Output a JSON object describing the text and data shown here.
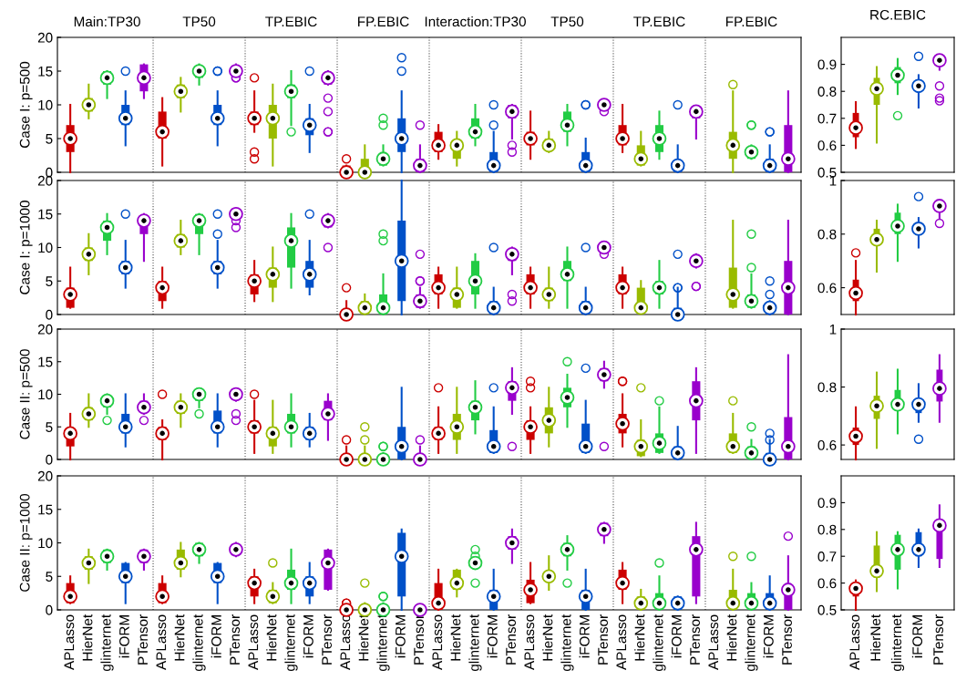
{
  "chart_data": [
    {
      "type": "box",
      "ylabel": "Case I: p=500",
      "tick_labels": "y",
      "annotations": [
        "Main:TP30",
        "TP50",
        "TP.EBIC",
        "FP.EBIC",
        "Interaction:TP30",
        "TP50",
        "TP.EBIC",
        "FP.EBIC"
      ],
      "categories": [
        "APLasso",
        "HierNet",
        "glinternet",
        "iFORM",
        "PTensor",
        "APLasso",
        "HierNet",
        "glinternet",
        "iFORM",
        "PTensor",
        "APLasso",
        "HierNet",
        "glinternet",
        "iFORM",
        "PTensor",
        "APLasso",
        "HierNet",
        "glinternet",
        "iFORM",
        "PTensor",
        "APLasso",
        "HierNet",
        "glinternet",
        "iFORM",
        "PTensor",
        "APLasso",
        "HierNet",
        "glinternet",
        "iFORM",
        "PTensor",
        "APLasso",
        "HierNet",
        "glinternet",
        "iFORM",
        "PTensor",
        "APLasso",
        "HierNet",
        "glinternet",
        "iFORM",
        "PTensor"
      ],
      "colors": [
        "#cc0000",
        "#99bb00",
        "#22cc44",
        "#0050c8",
        "#9900cc",
        "#cc0000",
        "#99bb00",
        "#22cc44",
        "#0050c8",
        "#9900cc",
        "#cc0000",
        "#99bb00",
        "#22cc44",
        "#0050c8",
        "#9900cc",
        "#cc0000",
        "#99bb00",
        "#22cc44",
        "#0050c8",
        "#9900cc",
        "#cc0000",
        "#99bb00",
        "#22cc44",
        "#0050c8",
        "#9900cc",
        "#cc0000",
        "#99bb00",
        "#22cc44",
        "#0050c8",
        "#9900cc",
        "#cc0000",
        "#99bb00",
        "#22cc44",
        "#0050c8",
        "#9900cc",
        "#cc0000",
        "#99bb00",
        "#22cc44",
        "#0050c8",
        "#9900cc"
      ],
      "ylim": [
        0,
        20
      ],
      "yticks": [
        0,
        5,
        10,
        15,
        20
      ],
      "boxes": [
        {
          "low": 0,
          "q1": 3,
          "median": 5,
          "q3": 7,
          "high": 10
        },
        {
          "low": 8,
          "q1": 9,
          "median": 10,
          "q3": 11,
          "high": 13
        },
        {
          "low": 11,
          "q1": 13,
          "median": 14,
          "q3": 15,
          "high": 15
        },
        {
          "low": 4,
          "q1": 7,
          "median": 8,
          "q3": 10,
          "high": 12,
          "outliers": [
            15
          ]
        },
        {
          "low": 11,
          "q1": 12,
          "median": 14,
          "q3": 16,
          "high": 16
        },
        {
          "low": 1,
          "q1": 5,
          "median": 6,
          "q3": 9,
          "high": 11
        },
        {
          "low": 9,
          "q1": 11,
          "median": 12,
          "q3": 13,
          "high": 14
        },
        {
          "low": 13,
          "q1": 14,
          "median": 15,
          "q3": 15,
          "high": 16
        },
        {
          "low": 4,
          "q1": 7,
          "median": 8,
          "q3": 10,
          "high": 12,
          "outliers": [
            15,
            15
          ]
        },
        {
          "low": 14.7,
          "q1": 14.7,
          "median": 15,
          "q3": 15.3,
          "high": 16,
          "outliers": [
            14,
            14
          ]
        },
        {
          "low": 6,
          "q1": 7,
          "median": 8,
          "q3": 9,
          "high": 12,
          "outliers": [
            14,
            3,
            2
          ]
        },
        {
          "low": 1,
          "q1": 5,
          "median": 8,
          "q3": 10,
          "high": 13
        },
        {
          "low": 7,
          "q1": 11,
          "median": 12,
          "q3": 13,
          "high": 15,
          "outliers": [
            6
          ]
        },
        {
          "low": 3,
          "q1": 5.5,
          "median": 7,
          "q3": 8,
          "high": 10,
          "outliers": [
            15
          ]
        },
        {
          "low": 13,
          "q1": 13,
          "median": 14,
          "q3": 14.5,
          "high": 15,
          "outliers": [
            11,
            9,
            6,
            6
          ]
        },
        {
          "low": 0,
          "q1": 0,
          "median": 0,
          "q3": 1,
          "high": 1,
          "outliers": [
            2
          ]
        },
        {
          "low": 0,
          "q1": 0,
          "median": 0,
          "q3": 2,
          "high": 4
        },
        {
          "low": 1,
          "q1": 1,
          "median": 2,
          "q3": 2,
          "high": 4,
          "outliers": [
            7,
            8
          ]
        },
        {
          "low": 0,
          "q1": 3,
          "median": 5,
          "q3": 8,
          "high": 12,
          "outliers": [
            15,
            17
          ]
        },
        {
          "low": 0,
          "q1": 0,
          "median": 1,
          "q3": 2,
          "high": 4,
          "outliers": [
            7
          ]
        },
        {
          "low": 2,
          "q1": 3,
          "median": 4,
          "q3": 6,
          "high": 7
        },
        {
          "low": 1,
          "q1": 2,
          "median": 4,
          "q3": 4,
          "high": 6
        },
        {
          "low": 4,
          "q1": 5,
          "median": 6,
          "q3": 8,
          "high": 10
        },
        {
          "low": 0,
          "q1": 0,
          "median": 1,
          "q3": 3,
          "high": 6,
          "outliers": [
            7,
            10
          ]
        },
        {
          "low": 5,
          "q1": 8,
          "median": 9,
          "q3": 10,
          "high": 10,
          "outliers": [
            4,
            3
          ]
        },
        {
          "low": 2,
          "q1": 4,
          "median": 5,
          "q3": 6,
          "high": 9
        },
        {
          "low": 3,
          "q1": 3.5,
          "median": 4,
          "q3": 5,
          "high": 6
        },
        {
          "low": 4,
          "q1": 6,
          "median": 7,
          "q3": 9,
          "high": 10
        },
        {
          "low": 0,
          "q1": 0,
          "median": 1,
          "q3": 3,
          "high": 5,
          "outliers": [
            10,
            10
          ]
        },
        {
          "low": 9.7,
          "q1": 9.7,
          "median": 10,
          "q3": 10.3,
          "high": 10.3,
          "outliers": [
            9
          ]
        },
        {
          "low": 3,
          "q1": 4,
          "median": 5,
          "q3": 7,
          "high": 10
        },
        {
          "low": 1,
          "q1": 1,
          "median": 2,
          "q3": 4,
          "high": 6
        },
        {
          "low": 2,
          "q1": 3,
          "median": 5,
          "q3": 7,
          "high": 9
        },
        {
          "low": 0,
          "q1": 0,
          "median": 1,
          "q3": 1,
          "high": 4,
          "outliers": [
            10
          ]
        },
        {
          "low": 5,
          "q1": 8,
          "median": 9,
          "q3": 9,
          "high": 9
        },
        null,
        {
          "low": 0,
          "q1": 2,
          "median": 4,
          "q3": 6,
          "high": 12,
          "outliers": [
            13
          ]
        },
        {
          "low": 2,
          "q1": 2,
          "median": 3,
          "q3": 3,
          "high": 4,
          "outliers": [
            7,
            7
          ]
        },
        {
          "low": 0,
          "q1": 0,
          "median": 1,
          "q3": 2,
          "high": 4,
          "outliers": [
            6,
            6
          ]
        },
        {
          "low": 0,
          "q1": 0,
          "median": 2,
          "q3": 7,
          "high": 12
        }
      ]
    },
    {
      "type": "box",
      "title": "RC.EBIC",
      "tick_labels": "y",
      "categories": [
        "APLasso",
        "HierNet",
        "glinternet",
        "iFORM",
        "PTensor"
      ],
      "colors": [
        "#cc0000",
        "#99bb00",
        "#22cc44",
        "#0050c8",
        "#9900cc"
      ],
      "ylim": [
        0.5,
        1
      ],
      "yticks": [
        0.5,
        0.6,
        0.7,
        0.8,
        0.9
      ],
      "boxes": [
        {
          "low": 0.59,
          "q1": 0.63,
          "median": 0.665,
          "q3": 0.72,
          "high": 0.76
        },
        {
          "low": 0.61,
          "q1": 0.75,
          "median": 0.81,
          "q3": 0.85,
          "high": 0.89
        },
        {
          "low": 0.79,
          "q1": 0.83,
          "median": 0.86,
          "q3": 0.89,
          "high": 0.92,
          "outliers": [
            0.71
          ]
        },
        {
          "low": 0.74,
          "q1": 0.8,
          "median": 0.82,
          "q3": 0.83,
          "high": 0.86,
          "outliers": [
            0.93
          ]
        },
        {
          "low": 0.88,
          "q1": 0.9,
          "median": 0.915,
          "q3": 0.92,
          "high": 0.93,
          "outliers": [
            0.82,
            0.775,
            0.765
          ]
        }
      ]
    },
    {
      "type": "box",
      "ylabel": "Case I: p=1000",
      "tick_labels": "y",
      "categories": [
        "APLasso",
        "HierNet",
        "glinternet",
        "iFORM",
        "PTensor",
        "APLasso",
        "HierNet",
        "glinternet",
        "iFORM",
        "PTensor",
        "APLasso",
        "HierNet",
        "glinternet",
        "iFORM",
        "PTensor",
        "APLasso",
        "HierNet",
        "glinternet",
        "iFORM",
        "PTensor",
        "APLasso",
        "HierNet",
        "glinternet",
        "iFORM",
        "PTensor",
        "APLasso",
        "HierNet",
        "glinternet",
        "iFORM",
        "PTensor",
        "APLasso",
        "HierNet",
        "glinternet",
        "iFORM",
        "PTensor",
        "APLasso",
        "HierNet",
        "glinternet",
        "iFORM",
        "PTensor"
      ],
      "colors": [
        "#cc0000",
        "#99bb00",
        "#22cc44",
        "#0050c8",
        "#9900cc",
        "#cc0000",
        "#99bb00",
        "#22cc44",
        "#0050c8",
        "#9900cc",
        "#cc0000",
        "#99bb00",
        "#22cc44",
        "#0050c8",
        "#9900cc",
        "#cc0000",
        "#99bb00",
        "#22cc44",
        "#0050c8",
        "#9900cc",
        "#cc0000",
        "#99bb00",
        "#22cc44",
        "#0050c8",
        "#9900cc",
        "#cc0000",
        "#99bb00",
        "#22cc44",
        "#0050c8",
        "#9900cc",
        "#cc0000",
        "#99bb00",
        "#22cc44",
        "#0050c8",
        "#9900cc",
        "#cc0000",
        "#99bb00",
        "#22cc44",
        "#0050c8",
        "#9900cc"
      ],
      "ylim": [
        0,
        20
      ],
      "yticks": [
        0,
        5,
        10,
        15,
        20
      ],
      "boxes": [
        {
          "low": 1,
          "q1": 1,
          "median": 3,
          "q3": 4,
          "high": 7
        },
        {
          "low": 6,
          "q1": 8,
          "median": 9,
          "q3": 10,
          "high": 12
        },
        {
          "low": 9,
          "q1": 11,
          "median": 13,
          "q3": 14,
          "high": 15
        },
        {
          "low": 4,
          "q1": 6,
          "median": 7,
          "q3": 8,
          "high": 11,
          "outliers": [
            15
          ]
        },
        {
          "low": 8,
          "q1": 12,
          "median": 14,
          "q3": 14,
          "high": 15
        },
        {
          "low": 1,
          "q1": 2,
          "median": 4,
          "q3": 5,
          "high": 7
        },
        {
          "low": 9,
          "q1": 10,
          "median": 11,
          "q3": 12,
          "high": 14
        },
        {
          "low": 9,
          "q1": 12,
          "median": 14,
          "q3": 15,
          "high": 15
        },
        {
          "low": 4,
          "q1": 6,
          "median": 7,
          "q3": 8,
          "high": 11,
          "outliers": [
            12,
            15
          ]
        },
        {
          "low": 14.7,
          "q1": 14.7,
          "median": 15,
          "q3": 15.3,
          "high": 15.3,
          "outliers": [
            14,
            13
          ]
        },
        {
          "low": 2,
          "q1": 3,
          "median": 5,
          "q3": 6,
          "high": 8
        },
        {
          "low": 2,
          "q1": 4,
          "median": 6,
          "q3": 7,
          "high": 10
        },
        {
          "low": 4,
          "q1": 7,
          "median": 11,
          "q3": 13,
          "high": 15
        },
        {
          "low": 3,
          "q1": 4,
          "median": 6,
          "q3": 8,
          "high": 11,
          "outliers": [
            15
          ]
        },
        {
          "low": 13,
          "q1": 13,
          "median": 14,
          "q3": 14,
          "high": 15,
          "outliers": [
            10
          ]
        },
        {
          "low": 0,
          "q1": 0,
          "median": 0,
          "q3": 0.5,
          "high": 2,
          "outliers": [
            4
          ]
        },
        {
          "low": 0,
          "q1": 0,
          "median": 1,
          "q3": 2,
          "high": 3
        },
        {
          "low": 0,
          "q1": 0,
          "median": 1,
          "q3": 3,
          "high": 6,
          "outliers": [
            11,
            12
          ]
        },
        {
          "low": 0,
          "q1": 2,
          "median": 8,
          "q3": 14,
          "high": 20
        },
        {
          "low": 1,
          "q1": 1,
          "median": 2,
          "q3": 3,
          "high": 4,
          "outliers": [
            5,
            5,
            9
          ]
        },
        {
          "low": 1,
          "q1": 3,
          "median": 4,
          "q3": 6,
          "high": 7
        },
        {
          "low": 1,
          "q1": 1,
          "median": 3,
          "q3": 4,
          "high": 7
        },
        {
          "low": 1,
          "q1": 3,
          "median": 5,
          "q3": 8,
          "high": 9
        },
        {
          "low": 0,
          "q1": 0,
          "median": 1,
          "q3": 2,
          "high": 4,
          "outliers": [
            10
          ]
        },
        {
          "low": 6,
          "q1": 8,
          "median": 9,
          "q3": 9.5,
          "high": 10,
          "outliers": [
            3,
            2
          ]
        },
        {
          "low": 1,
          "q1": 3,
          "median": 4,
          "q3": 6,
          "high": 7
        },
        {
          "low": 1,
          "q1": 2,
          "median": 3,
          "q3": 4,
          "high": 7
        },
        {
          "low": 1,
          "q1": 5,
          "median": 6,
          "q3": 8,
          "high": 10
        },
        {
          "low": 0,
          "q1": 0,
          "median": 1,
          "q3": 2,
          "high": 4,
          "outliers": [
            10
          ]
        },
        {
          "low": 9.7,
          "q1": 9.7,
          "median": 10,
          "q3": 10.3,
          "high": 10.3,
          "outliers": [
            9
          ]
        },
        {
          "low": 1,
          "q1": 3,
          "median": 4,
          "q3": 6,
          "high": 7
        },
        {
          "low": 1,
          "q1": 1,
          "median": 1,
          "q3": 4,
          "high": 5
        },
        {
          "low": 1,
          "q1": 3,
          "median": 4,
          "q3": 5,
          "high": 8
        },
        {
          "low": 0,
          "q1": 0,
          "median": 0,
          "q3": 1,
          "high": 4,
          "outliers": [
            4,
            4,
            9
          ]
        },
        {
          "low": 7,
          "q1": 8,
          "median": 8,
          "q3": 8.5,
          "high": 9,
          "outliers": [
            4.2,
            4.2
          ]
        },
        null,
        {
          "low": 1,
          "q1": 1,
          "median": 3,
          "q3": 7,
          "high": 14
        },
        {
          "low": 1,
          "q1": 1,
          "median": 2,
          "q3": 3,
          "high": 6,
          "outliers": [
            7,
            12
          ]
        },
        {
          "low": 0,
          "q1": 0,
          "median": 1,
          "q3": 1,
          "high": 2,
          "outliers": [
            3,
            5
          ]
        },
        {
          "low": 0,
          "q1": 0,
          "median": 4,
          "q3": 8,
          "high": 14
        }
      ]
    },
    {
      "type": "box",
      "tick_labels": "y",
      "categories": [
        "APLasso",
        "HierNet",
        "glinternet",
        "iFORM",
        "PTensor"
      ],
      "colors": [
        "#cc0000",
        "#99bb00",
        "#22cc44",
        "#0050c8",
        "#9900cc"
      ],
      "ylim": [
        0.5,
        1
      ],
      "yticks": [
        0.6,
        0.8,
        1
      ],
      "boxes": [
        {
          "low": 0.5,
          "q1": 0.55,
          "median": 0.58,
          "q3": 0.63,
          "high": 0.7,
          "outliers": [
            0.73
          ]
        },
        {
          "low": 0.66,
          "q1": 0.76,
          "median": 0.78,
          "q3": 0.82,
          "high": 0.85
        },
        {
          "low": 0.7,
          "q1": 0.8,
          "median": 0.83,
          "q3": 0.88,
          "high": 0.91
        },
        {
          "low": 0.75,
          "q1": 0.8,
          "median": 0.82,
          "q3": 0.84,
          "high": 0.86,
          "outliers": [
            0.94
          ]
        },
        {
          "low": 0.86,
          "q1": 0.9,
          "median": 0.905,
          "q3": 0.91,
          "high": 0.92,
          "outliers": [
            0.84
          ]
        }
      ]
    },
    {
      "type": "box",
      "ylabel": "Case II: p=500",
      "tick_labels": "y",
      "categories": [
        "APLasso",
        "HierNet",
        "glinternet",
        "iFORM",
        "PTensor",
        "APLasso",
        "HierNet",
        "glinternet",
        "iFORM",
        "PTensor",
        "APLasso",
        "HierNet",
        "glinternet",
        "iFORM",
        "PTensor",
        "APLasso",
        "HierNet",
        "glinternet",
        "iFORM",
        "PTensor",
        "APLasso",
        "HierNet",
        "glinternet",
        "iFORM",
        "PTensor",
        "APLasso",
        "HierNet",
        "glinternet",
        "iFORM",
        "PTensor",
        "APLasso",
        "HierNet",
        "glinternet",
        "iFORM",
        "PTensor",
        "APLasso",
        "HierNet",
        "glinternet",
        "iFORM",
        "PTensor"
      ],
      "colors": [
        "#cc0000",
        "#99bb00",
        "#22cc44",
        "#0050c8",
        "#9900cc",
        "#cc0000",
        "#99bb00",
        "#22cc44",
        "#0050c8",
        "#9900cc",
        "#cc0000",
        "#99bb00",
        "#22cc44",
        "#0050c8",
        "#9900cc",
        "#cc0000",
        "#99bb00",
        "#22cc44",
        "#0050c8",
        "#9900cc",
        "#cc0000",
        "#99bb00",
        "#22cc44",
        "#0050c8",
        "#9900cc",
        "#cc0000",
        "#99bb00",
        "#22cc44",
        "#0050c8",
        "#9900cc",
        "#cc0000",
        "#99bb00",
        "#22cc44",
        "#0050c8",
        "#9900cc",
        "#cc0000",
        "#99bb00",
        "#22cc44",
        "#0050c8",
        "#9900cc"
      ],
      "ylim": [
        0,
        20
      ],
      "yticks": [
        0,
        5,
        10,
        15,
        20
      ],
      "boxes": [
        {
          "low": 0,
          "q1": 2,
          "median": 4,
          "q3": 4,
          "high": 7
        },
        {
          "low": 5,
          "q1": 6,
          "median": 7,
          "q3": 8,
          "high": 10
        },
        {
          "low": 7,
          "q1": 8,
          "median": 9,
          "q3": 9.5,
          "high": 10,
          "outliers": [
            6
          ]
        },
        {
          "low": 2,
          "q1": 4,
          "median": 5,
          "q3": 7,
          "high": 10
        },
        {
          "low": 7,
          "q1": 7.5,
          "median": 8,
          "q3": 9,
          "high": 10,
          "outliers": [
            6
          ]
        },
        {
          "low": 0,
          "q1": 3,
          "median": 4,
          "q3": 5,
          "high": 6,
          "outliers": [
            10
          ]
        },
        {
          "low": 5,
          "q1": 7,
          "median": 8,
          "q3": 9,
          "high": 10
        },
        {
          "low": 8,
          "q1": 9,
          "median": 10,
          "q3": 10,
          "high": 10,
          "outliers": [
            7
          ]
        },
        {
          "low": 2,
          "q1": 4,
          "median": 5,
          "q3": 7.5,
          "high": 10
        },
        {
          "low": 9,
          "q1": 9.5,
          "median": 10,
          "q3": 10.3,
          "high": 10.3,
          "outliers": [
            7,
            6
          ]
        },
        {
          "low": 1,
          "q1": 4,
          "median": 5,
          "q3": 6,
          "high": 9,
          "outliers": [
            10
          ]
        },
        {
          "low": 1,
          "q1": 2,
          "median": 4,
          "q3": 5,
          "high": 9
        },
        {
          "low": 2,
          "q1": 4,
          "median": 5,
          "q3": 7,
          "high": 10
        },
        {
          "low": 2,
          "q1": 3,
          "median": 4,
          "q3": 5,
          "high": 7
        },
        {
          "low": 3,
          "q1": 6,
          "median": 7,
          "q3": 9,
          "high": 10
        },
        {
          "low": 0,
          "q1": 0,
          "median": 0,
          "q3": 0.5,
          "high": 2,
          "outliers": [
            3
          ]
        },
        {
          "low": 0,
          "q1": 0,
          "median": 0,
          "q3": 0.5,
          "high": 2,
          "outliers": [
            3,
            5
          ]
        },
        {
          "low": 0,
          "q1": 0,
          "median": 0,
          "q3": 0.5,
          "high": 1,
          "outliers": [
            2,
            2
          ]
        },
        {
          "low": 0,
          "q1": 0,
          "median": 2,
          "q3": 5,
          "high": 11
        },
        {
          "low": 0,
          "q1": 0,
          "median": 0,
          "q3": 0.5,
          "high": 2,
          "outliers": [
            3
          ]
        },
        {
          "low": 1,
          "q1": 3,
          "median": 4,
          "q3": 5,
          "high": 8,
          "outliers": [
            11
          ]
        },
        {
          "low": 1,
          "q1": 3,
          "median": 5,
          "q3": 7,
          "high": 11
        },
        {
          "low": 4,
          "q1": 6,
          "median": 8,
          "q3": 9,
          "high": 12
        },
        {
          "low": 1,
          "q1": 1,
          "median": 2,
          "q3": 4.5,
          "high": 8,
          "outliers": [
            11
          ]
        },
        {
          "low": 7,
          "q1": 9,
          "median": 11,
          "q3": 12,
          "high": 14,
          "outliers": [
            2
          ]
        },
        {
          "low": 1,
          "q1": 3,
          "median": 5,
          "q3": 6,
          "high": 8,
          "outliers": [
            11,
            12
          ]
        },
        {
          "low": 2,
          "q1": 4,
          "median": 6,
          "q3": 8,
          "high": 11
        },
        {
          "low": 5,
          "q1": 8,
          "median": 9.5,
          "q3": 11,
          "high": 13,
          "outliers": [
            15
          ]
        },
        {
          "low": 1,
          "q1": 1,
          "median": 2,
          "q3": 5.5,
          "high": 9,
          "outliers": [
            14
          ]
        },
        {
          "low": 11,
          "q1": 12,
          "median": 13,
          "q3": 14,
          "high": 15,
          "outliers": [
            2
          ]
        },
        {
          "low": 2,
          "q1": 4,
          "median": 5.5,
          "q3": 7,
          "high": 10,
          "outliers": [
            12,
            12
          ]
        },
        {
          "low": 0.5,
          "q1": 0.5,
          "median": 2,
          "q3": 3,
          "high": 6,
          "outliers": [
            11
          ]
        },
        {
          "low": 1,
          "q1": 1,
          "median": 2.5,
          "q3": 4,
          "high": 8,
          "outliers": [
            9
          ]
        },
        {
          "low": 0,
          "q1": 0,
          "median": 1,
          "q3": 2,
          "high": 5
        },
        {
          "low": 1,
          "q1": 6,
          "median": 9,
          "q3": 12,
          "high": 14
        },
        null,
        {
          "low": 1,
          "q1": 1,
          "median": 2,
          "q3": 4,
          "high": 7,
          "outliers": [
            9
          ]
        },
        {
          "low": 0.5,
          "q1": 0.5,
          "median": 1,
          "q3": 2,
          "high": 3,
          "outliers": [
            5
          ]
        },
        {
          "low": 0,
          "q1": 0,
          "median": 0,
          "q3": 1,
          "high": 3,
          "outliers": [
            3,
            4
          ]
        },
        {
          "low": 0,
          "q1": 0,
          "median": 2,
          "q3": 6.5,
          "high": 16
        }
      ]
    },
    {
      "type": "box",
      "tick_labels": "y",
      "categories": [
        "APLasso",
        "HierNet",
        "glinternet",
        "iFORM",
        "PTensor"
      ],
      "colors": [
        "#cc0000",
        "#99bb00",
        "#22cc44",
        "#0050c8",
        "#9900cc"
      ],
      "ylim": [
        0.55,
        1
      ],
      "yticks": [
        0.6,
        0.8,
        1
      ],
      "boxes": [
        {
          "low": 0.55,
          "q1": 0.6,
          "median": 0.63,
          "q3": 0.66,
          "high": 0.73
        },
        {
          "low": 0.59,
          "q1": 0.69,
          "median": 0.735,
          "q3": 0.77,
          "high": 0.85
        },
        {
          "low": 0.64,
          "q1": 0.72,
          "median": 0.74,
          "q3": 0.79,
          "high": 0.86
        },
        {
          "low": 0.68,
          "q1": 0.71,
          "median": 0.74,
          "q3": 0.75,
          "high": 0.81,
          "outliers": [
            0.62
          ]
        },
        {
          "low": 0.68,
          "q1": 0.75,
          "median": 0.795,
          "q3": 0.86,
          "high": 0.91
        }
      ]
    },
    {
      "type": "box",
      "ylabel": "Case II: p=1000",
      "categories": [
        "APLasso",
        "HierNet",
        "glinternet",
        "iFORM",
        "PTensor",
        "APLasso",
        "HierNet",
        "glinternet",
        "iFORM",
        "PTensor",
        "APLasso",
        "HierNet",
        "glinternet",
        "iFORM",
        "PTensor",
        "APLasso",
        "HierNet",
        "glinternet",
        "iFORM",
        "PTensor",
        "APLasso",
        "HierNet",
        "glinternet",
        "iFORM",
        "PTensor",
        "APLasso",
        "HierNet",
        "glinternet",
        "iFORM",
        "PTensor",
        "APLasso",
        "HierNet",
        "glinternet",
        "iFORM",
        "PTensor",
        "APLasso",
        "HierNet",
        "glinternet",
        "iFORM",
        "PTensor"
      ],
      "colors": [
        "#cc0000",
        "#99bb00",
        "#22cc44",
        "#0050c8",
        "#9900cc",
        "#cc0000",
        "#99bb00",
        "#22cc44",
        "#0050c8",
        "#9900cc",
        "#cc0000",
        "#99bb00",
        "#22cc44",
        "#0050c8",
        "#9900cc",
        "#cc0000",
        "#99bb00",
        "#22cc44",
        "#0050c8",
        "#9900cc",
        "#cc0000",
        "#99bb00",
        "#22cc44",
        "#0050c8",
        "#9900cc",
        "#cc0000",
        "#99bb00",
        "#22cc44",
        "#0050c8",
        "#9900cc",
        "#cc0000",
        "#99bb00",
        "#22cc44",
        "#0050c8",
        "#9900cc",
        "#cc0000",
        "#99bb00",
        "#22cc44",
        "#0050c8",
        "#9900cc"
      ],
      "ylim": [
        0,
        20
      ],
      "yticks": [
        0,
        5,
        10,
        15,
        20
      ],
      "boxes": [
        {
          "low": 1,
          "q1": 1,
          "median": 2,
          "q3": 4,
          "high": 5
        },
        {
          "low": 4,
          "q1": 6,
          "median": 7,
          "q3": 8,
          "high": 9
        },
        {
          "low": 6,
          "q1": 7,
          "median": 8,
          "q3": 9,
          "high": 9
        },
        {
          "low": 1,
          "q1": 4,
          "median": 5,
          "q3": 7,
          "high": 7
        },
        {
          "low": 6,
          "q1": 7,
          "median": 8,
          "q3": 9,
          "high": 9
        },
        {
          "low": 1,
          "q1": 1,
          "median": 2,
          "q3": 4,
          "high": 5
        },
        {
          "low": 5,
          "q1": 6,
          "median": 7,
          "q3": 9,
          "high": 10
        },
        {
          "low": 7,
          "q1": 8,
          "median": 9,
          "q3": 10,
          "high": 10
        },
        {
          "low": 1,
          "q1": 4,
          "median": 5,
          "q3": 7,
          "high": 7
        },
        {
          "low": 8,
          "q1": 8.7,
          "median": 9,
          "q3": 9.3,
          "high": 10
        },
        {
          "low": 1,
          "q1": 2,
          "median": 4,
          "q3": 5,
          "high": 6
        },
        {
          "low": 1,
          "q1": 1,
          "median": 2,
          "q3": 3,
          "high": 4,
          "outliers": [
            7
          ]
        },
        {
          "low": 1,
          "q1": 3,
          "median": 4,
          "q3": 6,
          "high": 9
        },
        {
          "low": 1,
          "q1": 2,
          "median": 4,
          "q3": 5,
          "high": 7
        },
        {
          "low": 3,
          "q1": 3,
          "median": 7,
          "q3": 9,
          "high": 9
        },
        {
          "low": 0,
          "q1": 0,
          "median": 0,
          "q3": 0.3,
          "high": 0.5,
          "outliers": [
            1,
            1
          ]
        },
        {
          "low": 0,
          "q1": 0,
          "median": 0,
          "q3": 0.5,
          "high": 1,
          "outliers": [
            4
          ]
        },
        {
          "low": 0,
          "q1": 0,
          "median": 0,
          "q3": 0.5,
          "high": 1,
          "outliers": [
            2,
            2
          ]
        },
        {
          "low": 0,
          "q1": 2,
          "median": 8,
          "q3": 11.5,
          "high": 12
        },
        {
          "low": 0,
          "q1": 0,
          "median": 0,
          "q3": 0.3,
          "high": 0.5
        },
        {
          "low": 0,
          "q1": 0,
          "median": 1,
          "q3": 4,
          "high": 6
        },
        {
          "low": 2,
          "q1": 3,
          "median": 4,
          "q3": 6,
          "high": 6
        },
        {
          "low": 6.7,
          "q1": 6.7,
          "median": 7,
          "q3": 7.3,
          "high": 7.3,
          "outliers": [
            4,
            8,
            9
          ]
        },
        {
          "low": 0,
          "q1": 0,
          "median": 2,
          "q3": 3,
          "high": 6
        },
        {
          "low": 7,
          "q1": 9,
          "median": 10,
          "q3": 11,
          "high": 12
        },
        {
          "low": 1,
          "q1": 1,
          "median": 3,
          "q3": 4.5,
          "high": 7
        },
        {
          "low": 3,
          "q1": 4.5,
          "median": 5,
          "q3": 5,
          "high": 8
        },
        {
          "low": 6,
          "q1": 8,
          "median": 9,
          "q3": 10,
          "high": 11,
          "outliers": [
            4
          ]
        },
        {
          "low": 0,
          "q1": 0,
          "median": 2,
          "q3": 3,
          "high": 6
        },
        {
          "low": 10,
          "q1": 11,
          "median": 12,
          "q3": 13,
          "high": 13
        },
        {
          "low": 1,
          "q1": 3,
          "median": 4,
          "q3": 6,
          "high": 7
        },
        {
          "low": 0,
          "q1": 0,
          "median": 1,
          "q3": 2,
          "high": 3
        },
        {
          "low": 0,
          "q1": 0,
          "median": 1,
          "q3": 2.5,
          "high": 5,
          "outliers": [
            7
          ]
        },
        {
          "low": 0,
          "q1": 0,
          "median": 1,
          "q3": 2,
          "high": 2
        },
        {
          "low": 1,
          "q1": 2,
          "median": 9,
          "q3": 11,
          "high": 13
        },
        null,
        {
          "low": 0,
          "q1": 0,
          "median": 1,
          "q3": 3,
          "high": 6,
          "outliers": [
            8
          ]
        },
        {
          "low": 0,
          "q1": 0,
          "median": 1,
          "q3": 2.5,
          "high": 4,
          "outliers": [
            8
          ]
        },
        {
          "low": 0,
          "q1": 0,
          "median": 1,
          "q3": 2.5,
          "high": 5
        },
        {
          "low": 0,
          "q1": 0,
          "median": 3,
          "q3": 3.5,
          "high": 8,
          "outliers": [
            11
          ]
        }
      ]
    },
    {
      "type": "box",
      "categories": [
        "APLasso",
        "HierNet",
        "glinternet",
        "iFORM",
        "PTensor"
      ],
      "colors": [
        "#cc0000",
        "#99bb00",
        "#22cc44",
        "#0050c8",
        "#9900cc"
      ],
      "ylim": [
        0.5,
        1
      ],
      "yticks": [
        0.5,
        0.6,
        0.7,
        0.8,
        0.9
      ],
      "boxes": [
        {
          "low": 0.5,
          "q1": 0.55,
          "median": 0.58,
          "q3": 0.6,
          "high": 0.61
        },
        {
          "low": 0.57,
          "q1": 0.62,
          "median": 0.645,
          "q3": 0.74,
          "high": 0.79
        },
        {
          "low": 0.58,
          "q1": 0.65,
          "median": 0.725,
          "q3": 0.78,
          "high": 0.79
        },
        {
          "low": 0.66,
          "q1": 0.7,
          "median": 0.725,
          "q3": 0.79,
          "high": 0.8
        },
        {
          "low": 0.66,
          "q1": 0.69,
          "median": 0.815,
          "q3": 0.83,
          "high": 0.89
        }
      ]
    }
  ]
}
